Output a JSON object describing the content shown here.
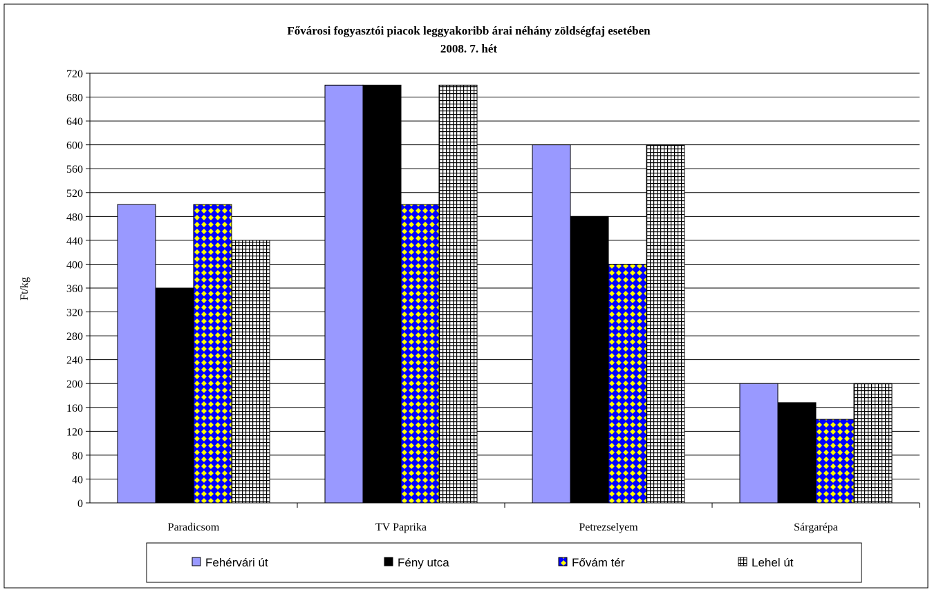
{
  "chart_data": {
    "type": "bar",
    "title": "Fővárosi fogyasztói piacok leggyakoribb árai néhány zöldségfaj esetében",
    "subtitle": "2008. 7. hét",
    "ylabel": "Ft/kg",
    "xlabel": "",
    "ylim": [
      0,
      720
    ],
    "ytick_step": 40,
    "grid": true,
    "legend_position": "bottom",
    "categories": [
      "Paradicsom",
      "TV Paprika",
      "Petrezselyem",
      "Sárgarépa"
    ],
    "series": [
      {
        "name": "Fehérvári út",
        "values": [
          500,
          700,
          600,
          200
        ],
        "color": "#9999ff",
        "pattern": "solid"
      },
      {
        "name": "Fény utca",
        "values": [
          360,
          700,
          480,
          168
        ],
        "color": "#000000",
        "pattern": "solid"
      },
      {
        "name": "Fővám tér",
        "values": [
          500,
          500,
          400,
          140
        ],
        "color": "#0000ff",
        "pattern": "diamond-yellow"
      },
      {
        "name": "Lehel út",
        "values": [
          440,
          700,
          600,
          200
        ],
        "color": "#000000",
        "pattern": "grid-white"
      }
    ]
  }
}
